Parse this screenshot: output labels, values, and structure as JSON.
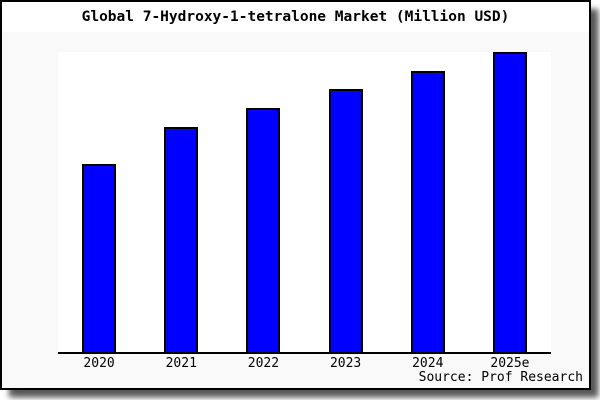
{
  "window": {
    "title": "Global 7-Hydroxy-1-tetralone Market (Million USD)"
  },
  "chart_data": {
    "type": "bar",
    "title": "Global 7-Hydroxy-1-tetralone Market (Million USD)",
    "categories": [
      "2020",
      "2021",
      "2022",
      "2023",
      "2024",
      "2025e"
    ],
    "values": [
      62.7,
      75.0,
      81.3,
      87.7,
      93.7,
      100.0
    ],
    "value_scale": "relative units estimated from bar heights; no y-axis tick labels shown in chart",
    "xlabel": "",
    "ylabel": "",
    "ylim": [
      0,
      100
    ],
    "grid": false,
    "legend": false,
    "y_axis_shown": false,
    "bar_color": "#0000ff",
    "bar_border_color": "#000000"
  },
  "footer": {
    "source": "Source: Prof Research"
  },
  "colors": {
    "card_background": "#f9f9f9",
    "plot_background": "#ffffff",
    "title_band_background": "#ffffff",
    "border": "#000000",
    "text": "#000000",
    "bar": "#0000ff"
  }
}
